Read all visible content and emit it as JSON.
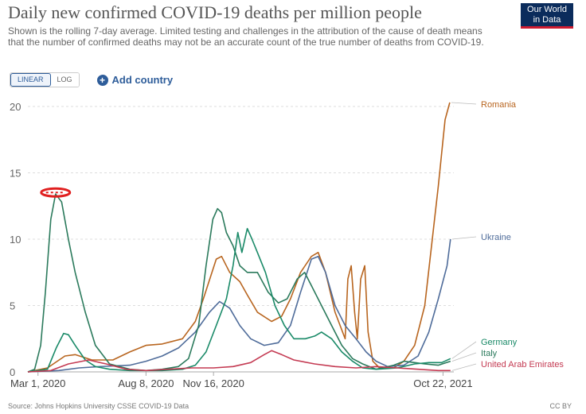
{
  "header": {
    "title": "Daily new confirmed COVID-19 deaths per million people",
    "subtitle": "Shown is the rolling 7-day average. Limited testing and challenges in the attribution of the cause of death means that the number of confirmed deaths may not be an accurate count of the true number of deaths from COVID-19."
  },
  "logo": {
    "line1": "Our World",
    "line2": "in Data"
  },
  "controls": {
    "linear_label": "LINEAR",
    "log_label": "LOG",
    "add_country_label": "Add country"
  },
  "footer": {
    "source": "Source: Johns Hopkins University CSSE COVID-19 Data",
    "license": "CC BY"
  },
  "colors": {
    "Romania": "#b8651f",
    "Ukraine": "#4f6c9a",
    "Germany": "#1a8a68",
    "Italy": "#2b7a5c",
    "United Arab Emirates": "#c43a52",
    "highlight": "#e02020"
  },
  "chart_data": {
    "type": "line",
    "xlabel": "",
    "ylabel": "",
    "ylim": [
      0,
      20
    ],
    "yticks": [
      0,
      5,
      10,
      15,
      20
    ],
    "xticks": [
      "Mar 1, 2020",
      "Aug 8, 2020",
      "Nov 16, 2020",
      "Oct 22, 2021"
    ],
    "xlim": [
      "2020-02-15",
      "2021-11-07"
    ],
    "grid": "horizontal-dashed",
    "legend": "inline-right",
    "annotation": {
      "type": "red-ellipse",
      "at": "Italy peak",
      "date": "2020-03-27",
      "value": 13.4
    },
    "series": [
      {
        "name": "Romania",
        "points": [
          [
            "2020-02-15",
            0
          ],
          [
            "2020-03-15",
            0.3
          ],
          [
            "2020-04-10",
            1.2
          ],
          [
            "2020-04-25",
            1.3
          ],
          [
            "2020-05-20",
            0.9
          ],
          [
            "2020-06-20",
            0.9
          ],
          [
            "2020-07-15",
            1.5
          ],
          [
            "2020-08-08",
            2.0
          ],
          [
            "2020-09-01",
            2.1
          ],
          [
            "2020-10-01",
            2.5
          ],
          [
            "2020-10-20",
            3.8
          ],
          [
            "2020-11-01",
            5.5
          ],
          [
            "2020-11-20",
            8.5
          ],
          [
            "2020-11-28",
            8.7
          ],
          [
            "2020-12-10",
            7.5
          ],
          [
            "2020-12-25",
            6.8
          ],
          [
            "2021-01-05",
            5.8
          ],
          [
            "2021-01-20",
            4.5
          ],
          [
            "2021-02-10",
            3.8
          ],
          [
            "2021-02-25",
            4.2
          ],
          [
            "2021-03-10",
            5.5
          ],
          [
            "2021-03-25",
            7.5
          ],
          [
            "2021-04-10",
            8.7
          ],
          [
            "2021-04-20",
            9.0
          ],
          [
            "2021-05-01",
            7.5
          ],
          [
            "2021-05-15",
            4.5
          ],
          [
            "2021-05-30",
            2.5
          ],
          [
            "2021-06-03",
            7.0
          ],
          [
            "2021-06-08",
            8.0
          ],
          [
            "2021-06-13",
            4.5
          ],
          [
            "2021-06-17",
            2.5
          ],
          [
            "2021-06-22",
            7.0
          ],
          [
            "2021-06-28",
            8.0
          ],
          [
            "2021-07-03",
            3.0
          ],
          [
            "2021-07-10",
            0.8
          ],
          [
            "2021-07-20",
            0.3
          ],
          [
            "2021-08-10",
            0.3
          ],
          [
            "2021-08-25",
            0.8
          ],
          [
            "2021-09-10",
            2.0
          ],
          [
            "2021-09-25",
            5.0
          ],
          [
            "2021-10-05",
            9.5
          ],
          [
            "2021-10-15",
            14.0
          ],
          [
            "2021-10-25",
            19.0
          ],
          [
            "2021-11-01",
            20.3
          ]
        ]
      },
      {
        "name": "Ukraine",
        "points": [
          [
            "2020-02-15",
            0
          ],
          [
            "2020-04-01",
            0.1
          ],
          [
            "2020-05-01",
            0.3
          ],
          [
            "2020-06-01",
            0.4
          ],
          [
            "2020-07-15",
            0.5
          ],
          [
            "2020-08-08",
            0.8
          ],
          [
            "2020-09-01",
            1.2
          ],
          [
            "2020-09-25",
            1.8
          ],
          [
            "2020-10-20",
            3.0
          ],
          [
            "2020-11-10",
            4.5
          ],
          [
            "2020-11-25",
            5.3
          ],
          [
            "2020-12-10",
            4.8
          ],
          [
            "2020-12-25",
            3.5
          ],
          [
            "2021-01-10",
            2.5
          ],
          [
            "2021-01-30",
            2.0
          ],
          [
            "2021-02-20",
            2.2
          ],
          [
            "2021-03-10",
            3.5
          ],
          [
            "2021-03-25",
            6.0
          ],
          [
            "2021-04-10",
            8.5
          ],
          [
            "2021-04-20",
            8.7
          ],
          [
            "2021-05-01",
            7.5
          ],
          [
            "2021-05-15",
            5.0
          ],
          [
            "2021-05-30",
            3.5
          ],
          [
            "2021-06-15",
            2.5
          ],
          [
            "2021-06-30",
            1.5
          ],
          [
            "2021-07-15",
            0.8
          ],
          [
            "2021-08-01",
            0.4
          ],
          [
            "2021-08-25",
            0.5
          ],
          [
            "2021-09-15",
            1.2
          ],
          [
            "2021-10-01",
            3.0
          ],
          [
            "2021-10-15",
            5.5
          ],
          [
            "2021-10-28",
            8.0
          ],
          [
            "2021-11-02",
            10.0
          ]
        ]
      },
      {
        "name": "Italy",
        "points": [
          [
            "2020-02-15",
            0
          ],
          [
            "2020-02-25",
            0.2
          ],
          [
            "2020-03-05",
            2.0
          ],
          [
            "2020-03-12",
            6.0
          ],
          [
            "2020-03-20",
            11.5
          ],
          [
            "2020-03-27",
            13.4
          ],
          [
            "2020-04-05",
            12.8
          ],
          [
            "2020-04-15",
            10.0
          ],
          [
            "2020-04-25",
            7.5
          ],
          [
            "2020-05-10",
            4.5
          ],
          [
            "2020-05-25",
            2.0
          ],
          [
            "2020-06-15",
            0.6
          ],
          [
            "2020-07-15",
            0.2
          ],
          [
            "2020-08-08",
            0.1
          ],
          [
            "2020-09-01",
            0.2
          ],
          [
            "2020-09-25",
            0.4
          ],
          [
            "2020-10-10",
            1.0
          ],
          [
            "2020-10-25",
            3.5
          ],
          [
            "2020-11-05",
            8.0
          ],
          [
            "2020-11-15",
            11.5
          ],
          [
            "2020-11-22",
            12.3
          ],
          [
            "2020-11-28",
            12.0
          ],
          [
            "2020-12-05",
            10.5
          ],
          [
            "2020-12-15",
            9.5
          ],
          [
            "2020-12-25",
            8.0
          ],
          [
            "2021-01-05",
            7.5
          ],
          [
            "2021-01-20",
            7.5
          ],
          [
            "2021-02-05",
            6.0
          ],
          [
            "2021-02-20",
            5.2
          ],
          [
            "2021-03-05",
            5.5
          ],
          [
            "2021-03-20",
            7.0
          ],
          [
            "2021-03-31",
            7.5
          ],
          [
            "2021-04-10",
            6.5
          ],
          [
            "2021-04-25",
            5.0
          ],
          [
            "2021-05-10",
            3.5
          ],
          [
            "2021-05-25",
            2.0
          ],
          [
            "2021-06-10",
            1.0
          ],
          [
            "2021-06-25",
            0.6
          ],
          [
            "2021-07-15",
            0.2
          ],
          [
            "2021-08-10",
            0.5
          ],
          [
            "2021-08-25",
            0.8
          ],
          [
            "2021-09-10",
            0.7
          ],
          [
            "2021-09-25",
            0.6
          ],
          [
            "2021-10-15",
            0.5
          ],
          [
            "2021-11-02",
            0.8
          ]
        ]
      },
      {
        "name": "Germany",
        "points": [
          [
            "2020-02-15",
            0
          ],
          [
            "2020-03-15",
            0.2
          ],
          [
            "2020-03-28",
            1.8
          ],
          [
            "2020-04-08",
            2.9
          ],
          [
            "2020-04-15",
            2.8
          ],
          [
            "2020-04-25",
            2.0
          ],
          [
            "2020-05-10",
            0.9
          ],
          [
            "2020-05-25",
            0.4
          ],
          [
            "2020-06-15",
            0.2
          ],
          [
            "2020-07-15",
            0.1
          ],
          [
            "2020-08-08",
            0.1
          ],
          [
            "2020-09-01",
            0.1
          ],
          [
            "2020-10-01",
            0.2
          ],
          [
            "2020-10-20",
            0.5
          ],
          [
            "2020-11-05",
            1.5
          ],
          [
            "2020-11-20",
            3.5
          ],
          [
            "2020-12-05",
            5.5
          ],
          [
            "2020-12-15",
            8.0
          ],
          [
            "2020-12-22",
            10.5
          ],
          [
            "2020-12-28",
            9.0
          ],
          [
            "2021-01-05",
            10.8
          ],
          [
            "2021-01-12",
            10.0
          ],
          [
            "2021-01-20",
            9.0
          ],
          [
            "2021-02-01",
            7.5
          ],
          [
            "2021-02-15",
            5.0
          ],
          [
            "2021-03-01",
            3.5
          ],
          [
            "2021-03-15",
            2.5
          ],
          [
            "2021-04-01",
            2.5
          ],
          [
            "2021-04-15",
            2.7
          ],
          [
            "2021-04-25",
            3.0
          ],
          [
            "2021-05-10",
            2.5
          ],
          [
            "2021-05-25",
            1.5
          ],
          [
            "2021-06-10",
            0.8
          ],
          [
            "2021-06-25",
            0.3
          ],
          [
            "2021-07-15",
            0.2
          ],
          [
            "2021-08-15",
            0.3
          ],
          [
            "2021-09-10",
            0.6
          ],
          [
            "2021-10-01",
            0.7
          ],
          [
            "2021-10-20",
            0.7
          ],
          [
            "2021-11-02",
            1.0
          ]
        ]
      },
      {
        "name": "United Arab Emirates",
        "points": [
          [
            "2020-02-15",
            0
          ],
          [
            "2020-03-20",
            0.1
          ],
          [
            "2020-04-15",
            0.6
          ],
          [
            "2020-05-15",
            0.9
          ],
          [
            "2020-06-10",
            0.6
          ],
          [
            "2020-07-10",
            0.2
          ],
          [
            "2020-08-08",
            0.1
          ],
          [
            "2020-09-10",
            0.2
          ],
          [
            "2020-10-15",
            0.3
          ],
          [
            "2020-11-16",
            0.3
          ],
          [
            "2020-12-15",
            0.4
          ],
          [
            "2021-01-10",
            0.7
          ],
          [
            "2021-01-30",
            1.3
          ],
          [
            "2021-02-10",
            1.6
          ],
          [
            "2021-02-25",
            1.3
          ],
          [
            "2021-03-15",
            0.9
          ],
          [
            "2021-04-15",
            0.6
          ],
          [
            "2021-05-15",
            0.4
          ],
          [
            "2021-06-15",
            0.3
          ],
          [
            "2021-07-15",
            0.4
          ],
          [
            "2021-08-15",
            0.3
          ],
          [
            "2021-09-15",
            0.2
          ],
          [
            "2021-10-15",
            0.1
          ],
          [
            "2021-11-02",
            0.1
          ]
        ]
      }
    ]
  }
}
